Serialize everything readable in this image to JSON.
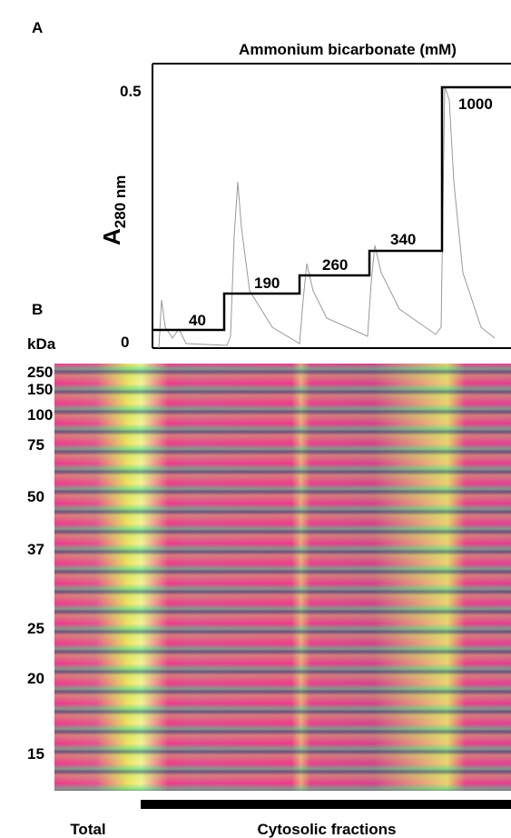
{
  "panel_a": {
    "label": "A",
    "title": "Ammonium bicarbonate (mM)",
    "y_label": "A",
    "y_label_sub": "280 nm",
    "y_ticks": [
      "0.5",
      "0"
    ],
    "steps": [
      "40",
      "190",
      "260",
      "340",
      "1000"
    ]
  },
  "panel_b": {
    "label": "B",
    "unit": "kDa",
    "markers": [
      "250",
      "150",
      "100",
      "75",
      "50",
      "37",
      "25",
      "20",
      "15"
    ],
    "lanes": [
      "Total",
      "Cytosolic fractions"
    ]
  }
}
